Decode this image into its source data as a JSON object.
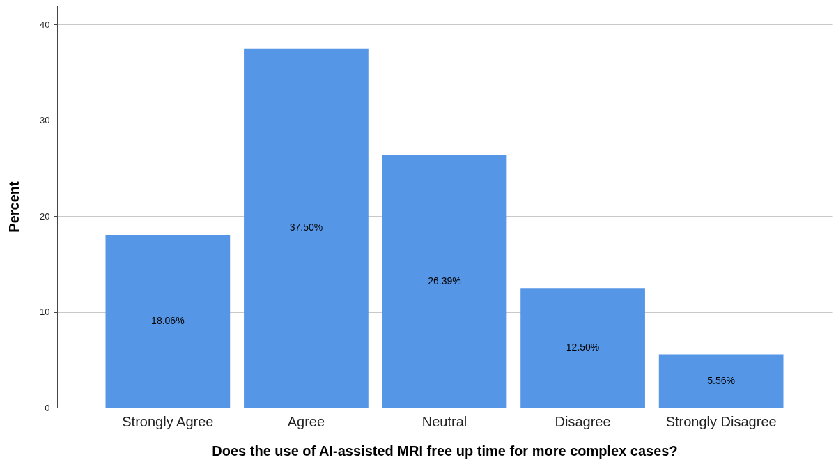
{
  "chart_data": {
    "type": "bar",
    "categories": [
      "Strongly Agree",
      "Agree",
      "Neutral",
      "Disagree",
      "Strongly Disagree"
    ],
    "values": [
      18.06,
      37.5,
      26.39,
      12.5,
      5.56
    ],
    "value_labels": [
      "18.06%",
      "37.50%",
      "26.39%",
      "12.50%",
      "5.56%"
    ],
    "color": "#5596e6",
    "xlabel": "Does the use of AI-assisted MRI free up time for more complex cases?",
    "ylabel": "Percent",
    "ylim": [
      0,
      42
    ],
    "yticks": [
      0,
      10,
      20,
      30,
      40
    ],
    "grid": "y"
  }
}
